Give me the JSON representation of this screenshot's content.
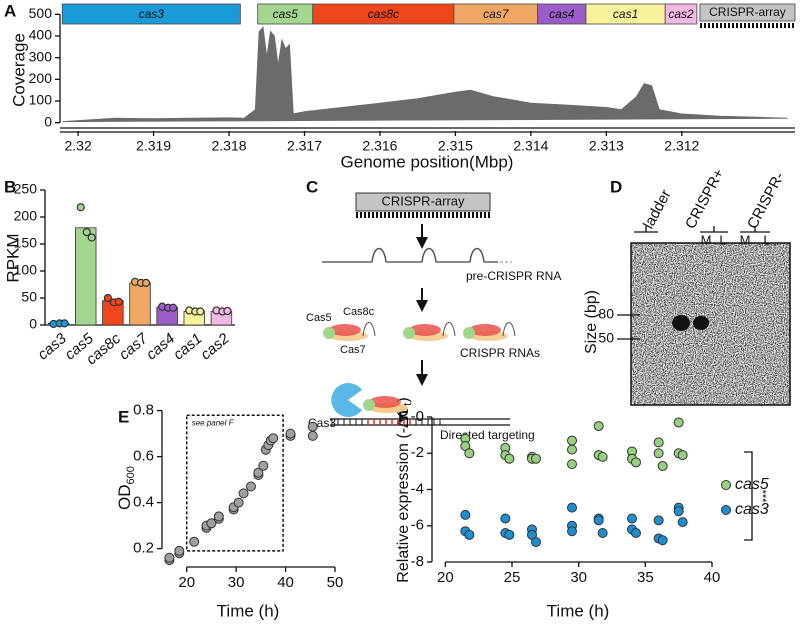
{
  "panel_labels": [
    "A",
    "B",
    "C",
    "D",
    "E",
    "F"
  ],
  "chart_data": [
    {
      "type": "area",
      "color": "#6b6b6b",
      "genes": [
        {
          "name": "cas3",
          "start": 2.32021,
          "end": 2.31785,
          "color": "#1a9bd7"
        },
        {
          "name": "cas5",
          "start": 2.31762,
          "end": 2.31689,
          "color": "#a3d68f"
        },
        {
          "name": "cas8c",
          "start": 2.31689,
          "end": 2.31502,
          "color": "#f0461b"
        },
        {
          "name": "cas7",
          "start": 2.31502,
          "end": 2.31391,
          "color": "#f0a763"
        },
        {
          "name": "cas4",
          "start": 2.31391,
          "end": 2.31327,
          "color": "#9b5ec8"
        },
        {
          "name": "cas1",
          "start": 2.31327,
          "end": 2.31222,
          "color": "#f6f39c"
        },
        {
          "name": "cas2",
          "start": 2.31222,
          "end": 2.3118,
          "color": "#f0b8e2"
        },
        {
          "name": "CRISPR-array",
          "start": 2.31176,
          "end": 2.3105,
          "color": "#c4c4c4"
        }
      ],
      "x": [
        2.3202,
        2.3195,
        2.319,
        2.3185,
        2.318,
        2.3178,
        2.31765,
        2.3176,
        2.31755,
        2.3175,
        2.31745,
        2.3174,
        2.31735,
        2.3173,
        2.31725,
        2.3172,
        2.31715,
        2.317,
        2.3165,
        2.316,
        2.3155,
        2.315,
        2.3148,
        2.3145,
        2.314,
        2.3135,
        2.313,
        2.3128,
        2.3126,
        2.3125,
        2.3124,
        2.3123,
        2.312,
        2.3115,
        2.311,
        2.3106
      ],
      "values": [
        5,
        20,
        18,
        20,
        22,
        20,
        60,
        420,
        440,
        300,
        420,
        400,
        260,
        380,
        340,
        360,
        40,
        50,
        70,
        90,
        110,
        140,
        150,
        120,
        90,
        80,
        70,
        60,
        120,
        180,
        170,
        60,
        40,
        30,
        25,
        20
      ],
      "xlim": [
        2.32024,
        2.3105
      ],
      "ylim": [
        -20,
        520
      ],
      "xticks": [
        2.32,
        2.319,
        2.318,
        2.317,
        2.316,
        2.315,
        2.314,
        2.313,
        2.312
      ],
      "yticks": [
        0,
        100,
        200,
        300,
        400,
        500
      ],
      "xlabel": "Genome position(Mbp)",
      "ylabel": "Coverage"
    },
    {
      "type": "bar",
      "categories": [
        "cas3",
        "cas5",
        "cas8c",
        "cas7",
        "cas4",
        "cas1",
        "cas2"
      ],
      "values": [
        3,
        180,
        45,
        78,
        33,
        25,
        25
      ],
      "colors": [
        "#1a9bd7",
        "#a3d68f",
        "#f0461b",
        "#f0a763",
        "#9b5ec8",
        "#f6f39c",
        "#f0b8e2"
      ],
      "replicates": [
        [
          2,
          3,
          3
        ],
        [
          218,
          172,
          162
        ],
        [
          50,
          42,
          43
        ],
        [
          80,
          78,
          78
        ],
        [
          34,
          32,
          32
        ],
        [
          27,
          25,
          25
        ],
        [
          27,
          25,
          26
        ]
      ],
      "ylim": [
        0,
        250
      ],
      "yticks": [
        0,
        50,
        100,
        150,
        200,
        250
      ],
      "ylabel": "RPKM"
    },
    {
      "type": "scatter",
      "color": "#a0a0a0",
      "x": [
        16.5,
        16.5,
        18.5,
        18.5,
        21.5,
        24,
        24,
        25,
        26.5,
        26.5,
        29.5,
        29.5,
        30.5,
        31.5,
        33,
        34.5,
        34.5,
        35.5,
        36,
        36.5,
        37,
        37.5,
        41,
        41,
        45.5,
        45.5
      ],
      "values": [
        0.15,
        0.16,
        0.18,
        0.19,
        0.23,
        0.29,
        0.3,
        0.31,
        0.33,
        0.34,
        0.37,
        0.38,
        0.4,
        0.44,
        0.47,
        0.52,
        0.53,
        0.56,
        0.63,
        0.65,
        0.67,
        0.68,
        0.69,
        0.7,
        0.69,
        0.73
      ],
      "xlim": [
        15,
        50
      ],
      "ylim": [
        0.12,
        0.82
      ],
      "xticks": [
        20,
        30,
        40,
        50
      ],
      "yticks": [
        0.2,
        0.4,
        0.6,
        0.8
      ],
      "xlabel": "Time (h)",
      "ylabel": "OD",
      "ylabel_subscript": "600",
      "annotation": "see panel F",
      "box": {
        "x": [
          20,
          39.5
        ],
        "y": [
          0.19,
          0.78
        ]
      }
    },
    {
      "type": "scatter",
      "legend": "right",
      "series": [
        {
          "name": "cas5",
          "color": "#96d17f",
          "x": [
            21.5,
            21.5,
            21.8,
            24.5,
            24.5,
            24.8,
            26.5,
            26.5,
            26.8,
            29.5,
            29.5,
            29.5,
            31.5,
            31.5,
            31.8,
            34,
            34,
            34.3,
            36,
            36,
            36.3,
            37.5,
            37.5,
            37.8
          ],
          "values": [
            -1.2,
            -1.6,
            -2.0,
            -1.7,
            -2.1,
            -2.3,
            -2.2,
            -2.3,
            -2.3,
            -1.3,
            -1.8,
            -2.6,
            -0.5,
            -2.1,
            -2.2,
            -1.9,
            -2.3,
            -2.5,
            -1.4,
            -2.0,
            -2.7,
            -0.3,
            -2.0,
            -2.1
          ]
        },
        {
          "name": "cas3",
          "color": "#1a90d2",
          "x": [
            21.5,
            21.5,
            21.8,
            24.5,
            24.5,
            24.8,
            26.5,
            26.5,
            26.8,
            29.5,
            29.5,
            29.5,
            31.5,
            31.5,
            31.8,
            34,
            34,
            34.3,
            36,
            36,
            36.3,
            37.5,
            37.5,
            37.8
          ],
          "values": [
            -5.4,
            -6.3,
            -6.5,
            -5.6,
            -6.4,
            -6.5,
            -6.2,
            -6.5,
            -6.9,
            -5.0,
            -6.0,
            -6.3,
            -5.6,
            -5.7,
            -6.4,
            -5.6,
            -6.2,
            -6.4,
            -5.7,
            -6.7,
            -6.8,
            -5.0,
            -5.2,
            -5.8
          ]
        }
      ],
      "xlim": [
        19,
        40
      ],
      "ylim": [
        -8,
        0
      ],
      "xticks": [
        20,
        25,
        30,
        35,
        40
      ],
      "yticks": [
        {
          "value": 0,
          "label": "-0"
        },
        -2,
        -4,
        -6,
        -8
      ],
      "xlabel": "Time (h)",
      "ylabel": "Relative expression (-ΔC",
      "ylabel_subscript": "t",
      "ylabel_suffix": ")",
      "annotation": "***"
    }
  ],
  "diagram": {
    "array": "CRISPR-array",
    "pre_rna": "pre-CRISPR RNA",
    "proteins": [
      "Cas5",
      "Cas8c",
      "Cas7"
    ],
    "mature": "CRISPR RNAs",
    "effector": "Cas3",
    "targeting": "Directed targeting"
  },
  "gel": {
    "lanes": [
      "ladder",
      "CRISPR+",
      "CRISPR-"
    ],
    "sublanes": [
      "M",
      "L",
      "M",
      "L"
    ],
    "ylabel": "Size (bp)",
    "markers": [
      "80",
      "50"
    ]
  }
}
